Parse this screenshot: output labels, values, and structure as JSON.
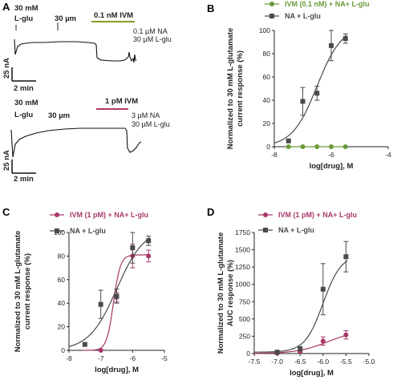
{
  "panels": {
    "A": {
      "letter": "A",
      "top": {
        "conc_label": "30 mM",
        "agonist_label": "L-glu",
        "wash_label": "30 µm",
        "drug_label": "0.1 nM IVM",
        "drug_color": "#8a9a2b",
        "ann1": "0.1 µM NA",
        "ann2": "30 µM L-glu",
        "ybar": "25 nA",
        "xbar": "2 min"
      },
      "bottom": {
        "conc_label": "30 mM",
        "agonist_label": "L-glu",
        "wash_label": "30 µm",
        "drug_label": "1 pM IVM",
        "drug_color": "#b03a6a",
        "ann1": "3 µM NA",
        "ann2": "30 µM L-glu",
        "ybar": "25 nA",
        "xbar": "2 min"
      }
    }
  },
  "chart_data": [
    {
      "panel": "B",
      "type": "scatter",
      "xlabel": "log[drug], M",
      "ylabel_line1": "Normalized to 30 mM L-glutamate",
      "ylabel_line2": "current response (%)",
      "xlim": [
        -8,
        -4
      ],
      "ylim": [
        0,
        100
      ],
      "xticks": [
        -8,
        -6,
        -4
      ],
      "yticks": [
        0,
        20,
        40,
        60,
        80,
        100
      ],
      "legend_position": "top",
      "series": [
        {
          "name": "IVM (0.1 nM) + NA+ L-glu",
          "color": "#6a9a3a",
          "marker": "circle",
          "x": [
            -7.5,
            -7,
            -6.5,
            -6,
            -5.5
          ],
          "y": [
            0,
            0,
            0,
            0,
            0
          ],
          "err": [
            0,
            0,
            0,
            0,
            0
          ],
          "fit": false
        },
        {
          "name": "NA + L-glu",
          "color": "#4a4a4a",
          "marker": "square",
          "x": [
            -7.5,
            -7,
            -6.5,
            -6,
            -5.5
          ],
          "y": [
            5,
            39,
            46,
            87,
            93
          ],
          "err": [
            0,
            12,
            6,
            13,
            4
          ],
          "fit": true,
          "fit_params": {
            "bottom": 0,
            "top": 104,
            "logec50": -6.5,
            "hill": 1.0
          }
        }
      ]
    },
    {
      "panel": "C",
      "type": "scatter",
      "xlabel": "log[drug], M",
      "ylabel_line1": "Normalized to 30 mM L-glutamate",
      "ylabel_line2": "current response (%)",
      "xlim": [
        -8,
        -5
      ],
      "ylim": [
        0,
        100
      ],
      "xticks": [
        -8,
        -7,
        -6,
        -5
      ],
      "yticks": [
        0,
        20,
        40,
        60,
        80,
        100
      ],
      "legend_position": "top",
      "series": [
        {
          "name": "IVM (1 pM) + NA+ L-glu",
          "color": "#a8386a",
          "marker": "circle",
          "x": [
            -7,
            -6.5,
            -6,
            -5.5
          ],
          "y": [
            0,
            45,
            80,
            80
          ],
          "err": [
            0,
            4,
            10,
            5
          ],
          "fit": true,
          "fit_params": {
            "bottom": 0,
            "top": 81,
            "logec50": -6.6,
            "hill": 4.0
          }
        },
        {
          "name": "NA + L-glu",
          "color": "#4a4a4a",
          "marker": "square",
          "x": [
            -7.5,
            -7,
            -6.5,
            -6,
            -5.5
          ],
          "y": [
            5,
            39,
            46,
            87,
            93
          ],
          "err": [
            0,
            12,
            6,
            13,
            4
          ],
          "fit": true,
          "fit_params": {
            "bottom": 0,
            "top": 104,
            "logec50": -6.5,
            "hill": 1.0
          }
        }
      ]
    },
    {
      "panel": "D",
      "type": "scatter",
      "xlabel": "log[drug], M",
      "ylabel_line1": "Normalized to 30 mM L-glutamate",
      "ylabel_line2": "AUC response (%)",
      "xlim": [
        -7.5,
        -5.0
      ],
      "ylim": [
        0,
        1750
      ],
      "xticks": [
        -7.5,
        -7.0,
        -6.5,
        -6.0,
        -5.5,
        -5.0
      ],
      "yticks": [
        0,
        250,
        500,
        750,
        1000,
        1250,
        1500,
        1750
      ],
      "legend_position": "top",
      "series": [
        {
          "name": "IVM (1 pM) + NA+ L-glu",
          "color": "#a8386a",
          "marker": "circle",
          "x": [
            -7,
            -6.5,
            -6,
            -5.5
          ],
          "y": [
            5,
            30,
            180,
            270
          ],
          "err": [
            0,
            15,
            60,
            60
          ],
          "fit": true,
          "fit_params": {
            "bottom": 0,
            "top": 340,
            "logec50": -5.9,
            "hill": 1.3
          }
        },
        {
          "name": "NA + L-glu",
          "color": "#4a4a4a",
          "marker": "square",
          "x": [
            -7,
            -6.5,
            -6,
            -5.5
          ],
          "y": [
            20,
            70,
            930,
            1400
          ],
          "err": [
            0,
            30,
            370,
            220
          ],
          "fit": true,
          "fit_params": {
            "bottom": 20,
            "top": 1430,
            "logec50": -6.0,
            "hill": 2.2
          }
        }
      ]
    }
  ]
}
